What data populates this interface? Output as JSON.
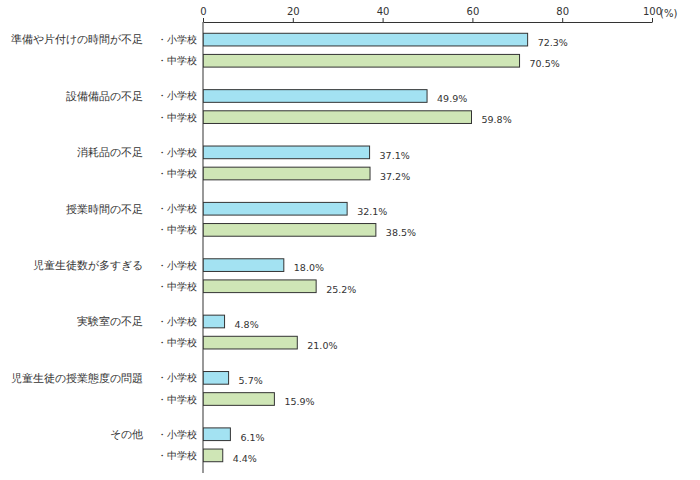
{
  "chart_data": {
    "type": "bar",
    "orientation": "horizontal",
    "categories": [
      "準備や片付けの時間が不足",
      "設備備品の不足",
      "消耗品の不足",
      "授業時間の不足",
      "児童生徒数が多すぎる",
      "実験室の不足",
      "児童生徒の授業態度の問題",
      "その他"
    ],
    "series": [
      {
        "name": "・小学校",
        "color": "#a3e2f2",
        "values": [
          72.3,
          49.9,
          37.1,
          32.1,
          18.0,
          4.8,
          5.7,
          6.1
        ],
        "value_labels": [
          "72.3%",
          "49.9%",
          "37.1%",
          "32.1%",
          "18.0%",
          "4.8%",
          "5.7%",
          "6.1%"
        ]
      },
      {
        "name": "・中学校",
        "color": "#cfe6b6",
        "values": [
          70.5,
          59.8,
          37.2,
          38.5,
          25.2,
          21.0,
          15.9,
          4.4
        ],
        "value_labels": [
          "70.5%",
          "59.8%",
          "37.2%",
          "38.5%",
          "25.2%",
          "21.0%",
          "15.9%",
          "4.4%"
        ]
      }
    ],
    "xlabel": "(%)",
    "xlim": [
      0,
      100
    ],
    "xticks": [
      0,
      20,
      40,
      60,
      80,
      100
    ],
    "grid": false,
    "data_labels": true
  }
}
